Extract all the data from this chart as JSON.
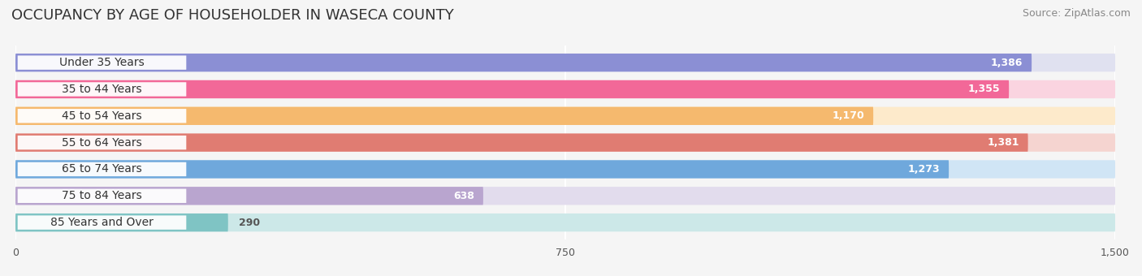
{
  "title": "OCCUPANCY BY AGE OF HOUSEHOLDER IN WASECA COUNTY",
  "source": "Source: ZipAtlas.com",
  "categories": [
    "Under 35 Years",
    "35 to 44 Years",
    "45 to 54 Years",
    "55 to 64 Years",
    "65 to 74 Years",
    "75 to 84 Years",
    "85 Years and Over"
  ],
  "values": [
    1386,
    1355,
    1170,
    1381,
    1273,
    638,
    290
  ],
  "bar_colors": [
    "#8b8fd4",
    "#f26898",
    "#f5b96e",
    "#e07c72",
    "#6fa8dc",
    "#b9a5cf",
    "#7fc4c4"
  ],
  "bar_bg_colors": [
    "#e0e1f0",
    "#fad4e0",
    "#fdeacb",
    "#f5d4d0",
    "#d0e5f5",
    "#e2dced",
    "#cce8e8"
  ],
  "xlim": [
    0,
    1500
  ],
  "xticks": [
    0,
    750,
    1500
  ],
  "title_fontsize": 13,
  "label_fontsize": 10,
  "value_fontsize": 9,
  "source_fontsize": 9,
  "background_color": "#f5f5f5"
}
